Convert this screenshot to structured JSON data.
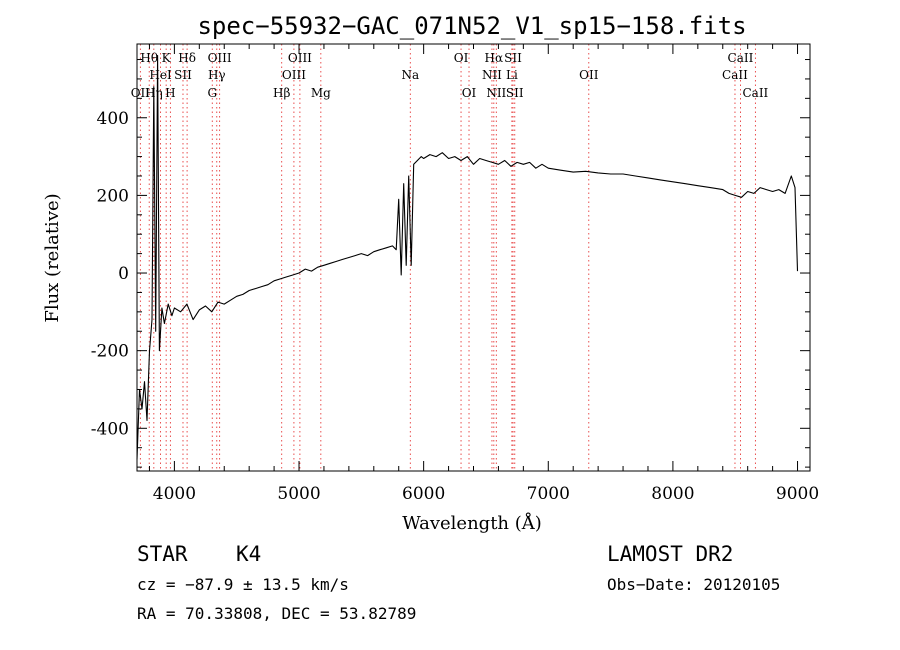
{
  "chart_data": {
    "type": "line",
    "title": "spec−55932−GAC_071N52_V1_sp15−158.fits",
    "xlabel": "Wavelength (Å)",
    "ylabel": "Flux (relative)",
    "xlim": [
      3700,
      9100
    ],
    "ylim": [
      -510,
      590
    ],
    "xticks": [
      4000,
      5000,
      6000,
      7000,
      8000,
      9000
    ],
    "yticks": [
      -400,
      -200,
      0,
      200,
      400
    ],
    "grid": false,
    "series": [
      {
        "x": [
          3700,
          3720,
          3740,
          3760,
          3780,
          3800,
          3820,
          3835,
          3850,
          3865,
          3880,
          3900,
          3920,
          3950,
          3980,
          4000,
          4050,
          4100,
          4150,
          4200,
          4250,
          4300,
          4350,
          4400,
          4450,
          4500,
          4550,
          4600,
          4650,
          4700,
          4750,
          4800,
          4850,
          4900,
          4950,
          5000,
          5050,
          5100,
          5150,
          5200,
          5250,
          5300,
          5350,
          5400,
          5450,
          5500,
          5550,
          5600,
          5650,
          5700,
          5750,
          5780,
          5800,
          5820,
          5840,
          5860,
          5880,
          5900,
          5920,
          5950,
          5980,
          6000,
          6050,
          6100,
          6150,
          6200,
          6250,
          6300,
          6350,
          6400,
          6450,
          6500,
          6550,
          6600,
          6650,
          6700,
          6750,
          6800,
          6850,
          6900,
          6950,
          7000,
          7100,
          7200,
          7300,
          7400,
          7500,
          7600,
          7700,
          7800,
          7900,
          8000,
          8100,
          8200,
          8300,
          8400,
          8450,
          8500,
          8550,
          8600,
          8650,
          8700,
          8750,
          8800,
          8850,
          8900,
          8950,
          8980,
          9000
        ],
        "y": [
          -480,
          -300,
          -350,
          -280,
          -380,
          -200,
          -120,
          480,
          -150,
          560,
          -200,
          -90,
          -130,
          -80,
          -110,
          -90,
          -100,
          -80,
          -120,
          -95,
          -85,
          -100,
          -75,
          -80,
          -70,
          -60,
          -55,
          -45,
          -40,
          -35,
          -30,
          -20,
          -15,
          -10,
          -5,
          0,
          10,
          5,
          15,
          20,
          25,
          30,
          35,
          40,
          45,
          50,
          45,
          55,
          60,
          65,
          70,
          60,
          190,
          -5,
          230,
          20,
          250,
          20,
          280,
          290,
          300,
          295,
          305,
          300,
          310,
          295,
          300,
          290,
          300,
          280,
          295,
          290,
          285,
          280,
          290,
          275,
          285,
          280,
          285,
          270,
          280,
          270,
          265,
          260,
          262,
          258,
          255,
          255,
          250,
          245,
          240,
          235,
          230,
          225,
          220,
          215,
          205,
          200,
          195,
          210,
          205,
          220,
          215,
          210,
          215,
          205,
          250,
          220,
          5
        ]
      }
    ],
    "annotations": [
      {
        "text": "Hθ",
        "x": 3798,
        "row": 1
      },
      {
        "text": "K",
        "x": 3934,
        "row": 1
      },
      {
        "text": "Hδ",
        "x": 4102,
        "row": 1
      },
      {
        "text": "OIII",
        "x": 4363,
        "row": 1
      },
      {
        "text": "OIII",
        "x": 5007,
        "row": 1
      },
      {
        "text": "OI",
        "x": 6300,
        "row": 1
      },
      {
        "text": "Hα",
        "x": 6563,
        "row": 1
      },
      {
        "text": "SII",
        "x": 6717,
        "row": 1
      },
      {
        "text": "CaII",
        "x": 8542,
        "row": 1
      },
      {
        "text": "HeI",
        "x": 3889,
        "row": 2
      },
      {
        "text": "SII",
        "x": 4069,
        "row": 2
      },
      {
        "text": "Hγ",
        "x": 4340,
        "row": 2
      },
      {
        "text": "OIII",
        "x": 4959,
        "row": 2
      },
      {
        "text": "Na",
        "x": 5893,
        "row": 2
      },
      {
        "text": "NII",
        "x": 6548,
        "row": 2
      },
      {
        "text": "Li",
        "x": 6708,
        "row": 2
      },
      {
        "text": "OII",
        "x": 7325,
        "row": 2
      },
      {
        "text": "CaII",
        "x": 8498,
        "row": 2
      },
      {
        "text": "OII",
        "x": 3727,
        "row": 3
      },
      {
        "text": "Hη",
        "x": 3835,
        "row": 3
      },
      {
        "text": "H",
        "x": 3968,
        "row": 3
      },
      {
        "text": "G",
        "x": 4304,
        "row": 3
      },
      {
        "text": "Hβ",
        "x": 4861,
        "row": 3
      },
      {
        "text": "Mg",
        "x": 5175,
        "row": 3
      },
      {
        "text": "OI",
        "x": 6364,
        "row": 3
      },
      {
        "text": "NII",
        "x": 6583,
        "row": 3
      },
      {
        "text": "SII",
        "x": 6731,
        "row": 3
      },
      {
        "text": "CaII",
        "x": 8662,
        "row": 3
      }
    ],
    "line_markers": [
      3727,
      3798,
      3835,
      3889,
      3934,
      3968,
      4069,
      4102,
      4304,
      4340,
      4363,
      4861,
      4959,
      5007,
      5175,
      5893,
      6300,
      6364,
      6548,
      6563,
      6583,
      6708,
      6717,
      6731,
      7325,
      8498,
      8542,
      8662
    ],
    "marker_color": "#e63c3c"
  },
  "info": {
    "object_class": "STAR",
    "subclass": "K4",
    "survey": "LAMOST DR2",
    "cz": "cz = −87.9 ± 13.5 km/s",
    "obs_date": "Obs−Date: 20120105",
    "coords": "RA =  70.33808, DEC =  53.82789"
  }
}
